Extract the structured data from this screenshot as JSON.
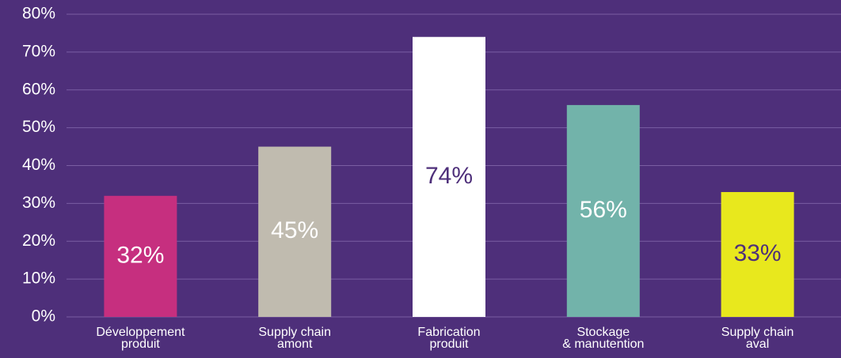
{
  "chart_data": {
    "type": "bar",
    "categories": [
      [
        "Développement",
        "produit"
      ],
      [
        "Supply chain",
        "amont"
      ],
      [
        "Fabrication",
        "produit"
      ],
      [
        "Stockage",
        "& manutention"
      ],
      [
        "Supply chain",
        "aval"
      ]
    ],
    "values": [
      32,
      45,
      74,
      56,
      33
    ],
    "value_labels": [
      "32%",
      "45%",
      "74%",
      "56%",
      "33%"
    ],
    "colors": [
      "#c62f7f",
      "#c0bbaf",
      "#ffffff",
      "#72b3aa",
      "#e8e81d"
    ],
    "label_colors": [
      "#ffffff",
      "#ffffff",
      "#4e2f7a",
      "#ffffff",
      "#4e2f7a"
    ],
    "ylim": [
      0,
      80
    ],
    "yticks": [
      {
        "value": 0,
        "label": "0%"
      },
      {
        "value": 10,
        "label": "10%"
      },
      {
        "value": 20,
        "label": "20%"
      },
      {
        "value": 30,
        "label": "30%"
      },
      {
        "value": 40,
        "label": "40%"
      },
      {
        "value": 50,
        "label": "50%"
      },
      {
        "value": 60,
        "label": "60%"
      },
      {
        "value": 70,
        "label": "70%"
      },
      {
        "value": 80,
        "label": "80%"
      }
    ],
    "grid": true
  }
}
